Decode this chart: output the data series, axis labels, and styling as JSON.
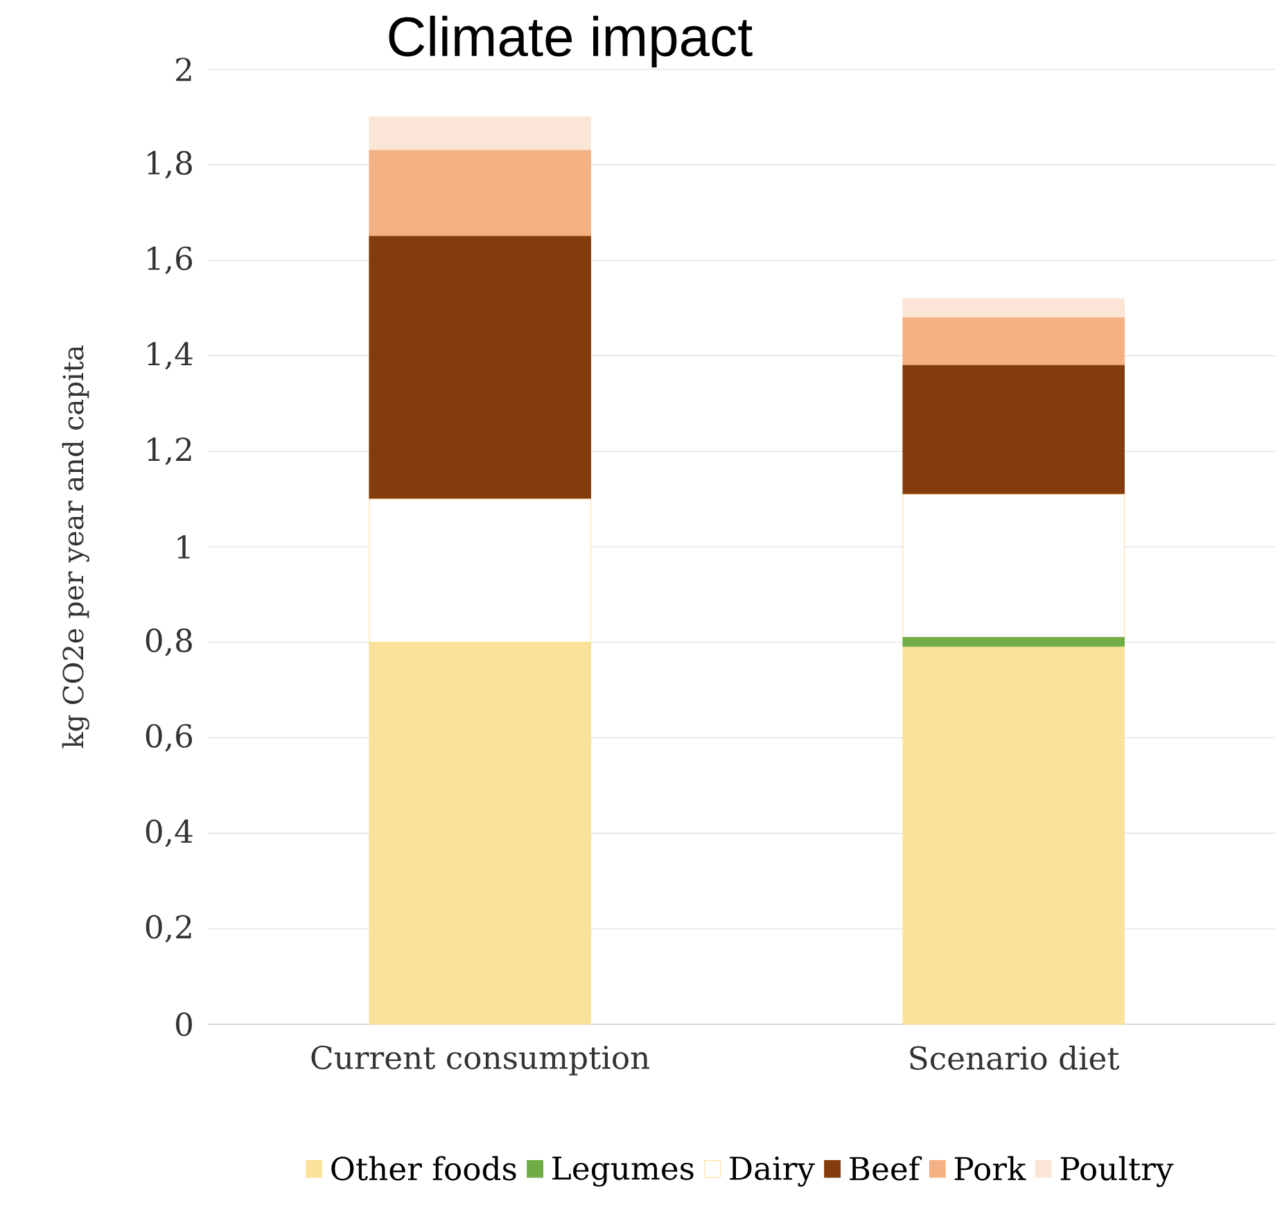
{
  "chart_data": {
    "type": "bar",
    "stacked": true,
    "title": "Climate impact",
    "ylabel": "kg CO2e per year and capita",
    "categories": [
      "Current consumption",
      "Scenario diet"
    ],
    "series": [
      {
        "name": "Other foods",
        "color": "#fbe29b",
        "values": [
          0.8,
          0.79
        ]
      },
      {
        "name": "Legumes",
        "color": "#70ad47",
        "values": [
          0,
          0.02
        ]
      },
      {
        "name": "Dairy",
        "color": "#ffffff",
        "values": [
          0.3,
          0.3
        ]
      },
      {
        "name": "Beef",
        "color": "#843c0c",
        "values": [
          0.55,
          0.27
        ]
      },
      {
        "name": "Pork",
        "color": "#f4b183",
        "values": [
          0.18,
          0.1
        ]
      },
      {
        "name": "Poultry",
        "color": "#fbe5d6",
        "values": [
          0.07,
          0.04
        ]
      }
    ],
    "ylim": [
      0,
      2
    ],
    "yticks": [
      0,
      {
        "value": 0.2,
        "label": "0,2"
      },
      {
        "value": 0.4,
        "label": "0,4"
      },
      {
        "value": 0.6,
        "label": "0,6"
      },
      {
        "value": 0.8,
        "label": "0,8"
      },
      1,
      {
        "value": 1.2,
        "label": "1,2"
      },
      {
        "value": 1.4,
        "label": "1,4"
      },
      {
        "value": 1.6,
        "label": "1,6"
      },
      {
        "value": 1.8,
        "label": "1,8"
      },
      2
    ],
    "grid": "y",
    "legend": "bottom"
  }
}
